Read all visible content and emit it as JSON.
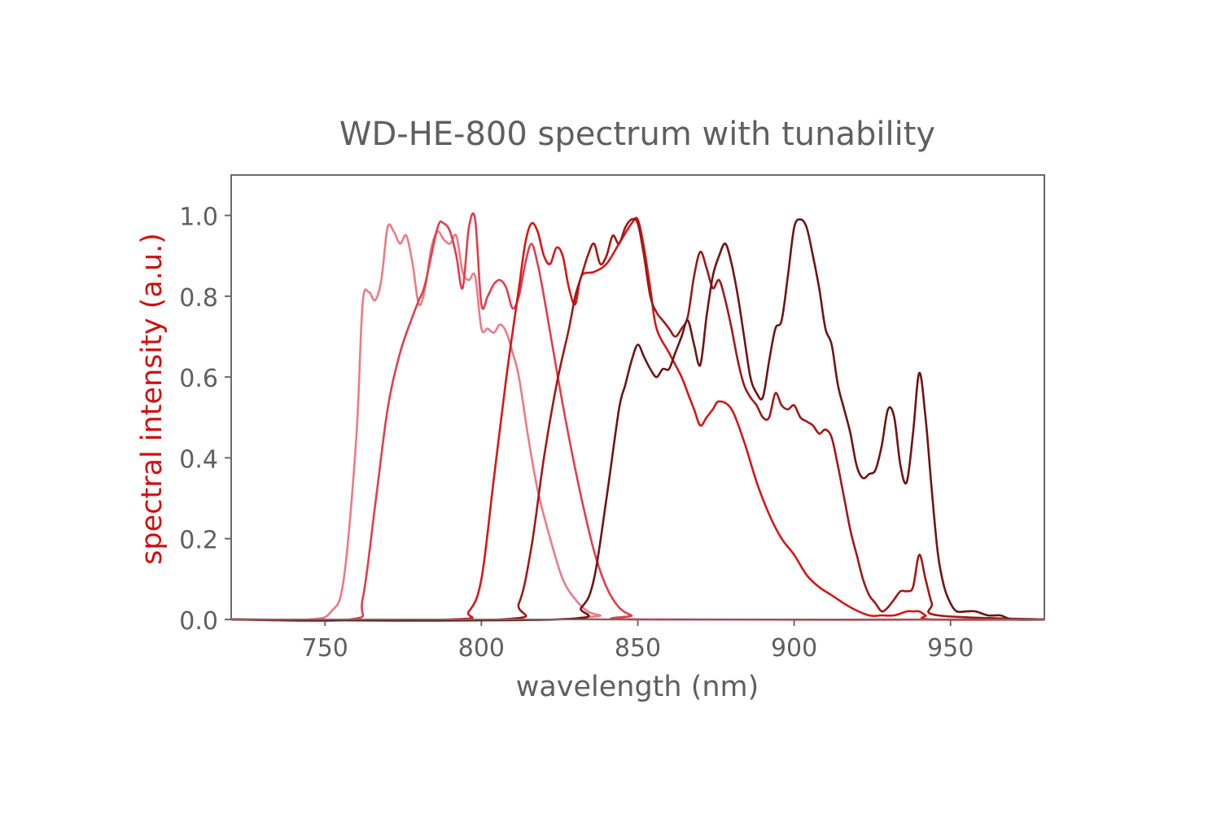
{
  "chart_data": {
    "type": "line",
    "title": "WD-HE-800 spectrum with tunability",
    "xlabel": "wavelength (nm)",
    "ylabel": "spectral intensity (a.u.)",
    "xlim": [
      720,
      980
    ],
    "ylim": [
      0,
      1.1
    ],
    "xticks": [
      750,
      800,
      850,
      900,
      950
    ],
    "yticks": [
      0.0,
      0.2,
      0.4,
      0.6,
      0.8,
      1.0
    ],
    "xtick_labels": [
      "750",
      "800",
      "850",
      "900",
      "950"
    ],
    "ytick_labels": [
      "0.0",
      "0.2",
      "0.4",
      "0.6",
      "0.8",
      "1.0"
    ],
    "grid": false,
    "legend": false,
    "colors": {
      "title": "#5f5f5f",
      "ticks": "#5f5f5f",
      "xlabel": "#5f5f5f",
      "ylabel": "#d01010",
      "frame": "#6a6a6a"
    },
    "series": [
      {
        "color": "#ec7a86",
        "x": [
          720,
          745,
          752,
          756,
          760,
          762,
          764,
          766,
          768,
          770,
          772,
          774,
          776,
          778,
          780,
          782,
          784,
          786,
          788,
          790,
          792,
          794,
          796,
          798,
          800,
          802,
          804,
          806,
          808,
          810,
          812,
          815,
          818,
          822,
          826,
          830,
          834,
          838,
          842,
          980
        ],
        "y": [
          0.0,
          0.0,
          0.02,
          0.1,
          0.45,
          0.78,
          0.81,
          0.79,
          0.84,
          0.97,
          0.96,
          0.93,
          0.95,
          0.88,
          0.78,
          0.82,
          0.92,
          0.96,
          0.94,
          0.93,
          0.95,
          0.86,
          0.84,
          0.85,
          0.72,
          0.72,
          0.71,
          0.73,
          0.71,
          0.66,
          0.6,
          0.45,
          0.32,
          0.2,
          0.1,
          0.05,
          0.02,
          0.01,
          0.0,
          0.0
        ]
      },
      {
        "color": "#e03e4c",
        "x": [
          720,
          758,
          762,
          766,
          770,
          774,
          778,
          780,
          782,
          786,
          788,
          790,
          792,
          794,
          796,
          798,
          800,
          802,
          804,
          806,
          808,
          810,
          812,
          814,
          816,
          818,
          820,
          824,
          828,
          832,
          836,
          840,
          844,
          848,
          852,
          980
        ],
        "y": [
          0.0,
          0.0,
          0.05,
          0.28,
          0.52,
          0.66,
          0.75,
          0.79,
          0.83,
          0.97,
          0.98,
          0.96,
          0.9,
          0.82,
          0.97,
          0.99,
          0.78,
          0.8,
          0.83,
          0.84,
          0.82,
          0.77,
          0.8,
          0.88,
          0.93,
          0.88,
          0.8,
          0.62,
          0.45,
          0.3,
          0.17,
          0.08,
          0.03,
          0.01,
          0.0,
          0.0
        ]
      },
      {
        "color": "#d41818",
        "x": [
          720,
          790,
          796,
          800,
          804,
          808,
          812,
          814,
          816,
          818,
          820,
          822,
          824,
          826,
          828,
          830,
          832,
          836,
          840,
          844,
          848,
          850,
          852,
          854,
          856,
          860,
          864,
          866,
          868,
          870,
          872,
          874,
          876,
          880,
          884,
          888,
          892,
          896,
          900,
          904,
          908,
          912,
          918,
          924,
          928,
          932,
          936,
          938,
          940,
          942,
          944,
          980
        ],
        "y": [
          0.0,
          0.0,
          0.02,
          0.1,
          0.35,
          0.6,
          0.82,
          0.93,
          0.98,
          0.96,
          0.9,
          0.88,
          0.92,
          0.9,
          0.82,
          0.78,
          0.85,
          0.86,
          0.88,
          0.93,
          0.98,
          0.99,
          0.92,
          0.82,
          0.72,
          0.66,
          0.6,
          0.56,
          0.52,
          0.48,
          0.5,
          0.52,
          0.54,
          0.52,
          0.44,
          0.34,
          0.26,
          0.2,
          0.16,
          0.11,
          0.08,
          0.06,
          0.03,
          0.01,
          0.01,
          0.01,
          0.02,
          0.02,
          0.02,
          0.01,
          0.0,
          0.0
        ]
      },
      {
        "color": "#a01818",
        "x": [
          720,
          806,
          812,
          816,
          820,
          824,
          828,
          830,
          832,
          834,
          836,
          838,
          840,
          842,
          844,
          846,
          848,
          850,
          852,
          854,
          856,
          858,
          860,
          862,
          864,
          866,
          868,
          870,
          872,
          874,
          876,
          878,
          880,
          882,
          884,
          886,
          888,
          890,
          892,
          894,
          896,
          898,
          900,
          902,
          904,
          906,
          908,
          910,
          912,
          914,
          916,
          918,
          920,
          922,
          924,
          926,
          928,
          930,
          932,
          934,
          936,
          938,
          940,
          942,
          944,
          946,
          980
        ],
        "y": [
          0.0,
          0.0,
          0.04,
          0.18,
          0.4,
          0.58,
          0.72,
          0.8,
          0.85,
          0.9,
          0.93,
          0.88,
          0.9,
          0.95,
          0.93,
          0.97,
          0.99,
          0.98,
          0.9,
          0.8,
          0.76,
          0.74,
          0.72,
          0.7,
          0.72,
          0.75,
          0.85,
          0.91,
          0.87,
          0.82,
          0.84,
          0.79,
          0.72,
          0.64,
          0.58,
          0.55,
          0.53,
          0.5,
          0.5,
          0.56,
          0.53,
          0.52,
          0.53,
          0.5,
          0.49,
          0.48,
          0.46,
          0.47,
          0.45,
          0.38,
          0.3,
          0.22,
          0.16,
          0.1,
          0.06,
          0.04,
          0.02,
          0.03,
          0.05,
          0.07,
          0.07,
          0.08,
          0.16,
          0.1,
          0.04,
          0.01,
          0.0
        ]
      },
      {
        "color": "#701414",
        "x": [
          720,
          824,
          832,
          836,
          840,
          844,
          846,
          848,
          850,
          852,
          854,
          856,
          858,
          860,
          862,
          864,
          866,
          868,
          870,
          872,
          874,
          876,
          878,
          880,
          882,
          884,
          886,
          888,
          890,
          892,
          894,
          896,
          898,
          900,
          902,
          904,
          906,
          908,
          910,
          912,
          914,
          916,
          918,
          920,
          922,
          924,
          926,
          928,
          930,
          932,
          934,
          936,
          938,
          940,
          942,
          944,
          946,
          948,
          950,
          952,
          955,
          958,
          962,
          966,
          970,
          980
        ],
        "y": [
          0.0,
          0.0,
          0.03,
          0.1,
          0.3,
          0.52,
          0.58,
          0.64,
          0.68,
          0.65,
          0.62,
          0.6,
          0.62,
          0.62,
          0.66,
          0.7,
          0.74,
          0.68,
          0.63,
          0.75,
          0.85,
          0.9,
          0.93,
          0.88,
          0.8,
          0.7,
          0.6,
          0.56,
          0.55,
          0.64,
          0.72,
          0.74,
          0.85,
          0.97,
          0.99,
          0.97,
          0.9,
          0.82,
          0.72,
          0.68,
          0.58,
          0.52,
          0.46,
          0.38,
          0.35,
          0.36,
          0.37,
          0.43,
          0.52,
          0.5,
          0.38,
          0.34,
          0.46,
          0.61,
          0.5,
          0.32,
          0.16,
          0.08,
          0.04,
          0.02,
          0.02,
          0.02,
          0.01,
          0.01,
          0.0,
          0.0
        ]
      }
    ]
  }
}
